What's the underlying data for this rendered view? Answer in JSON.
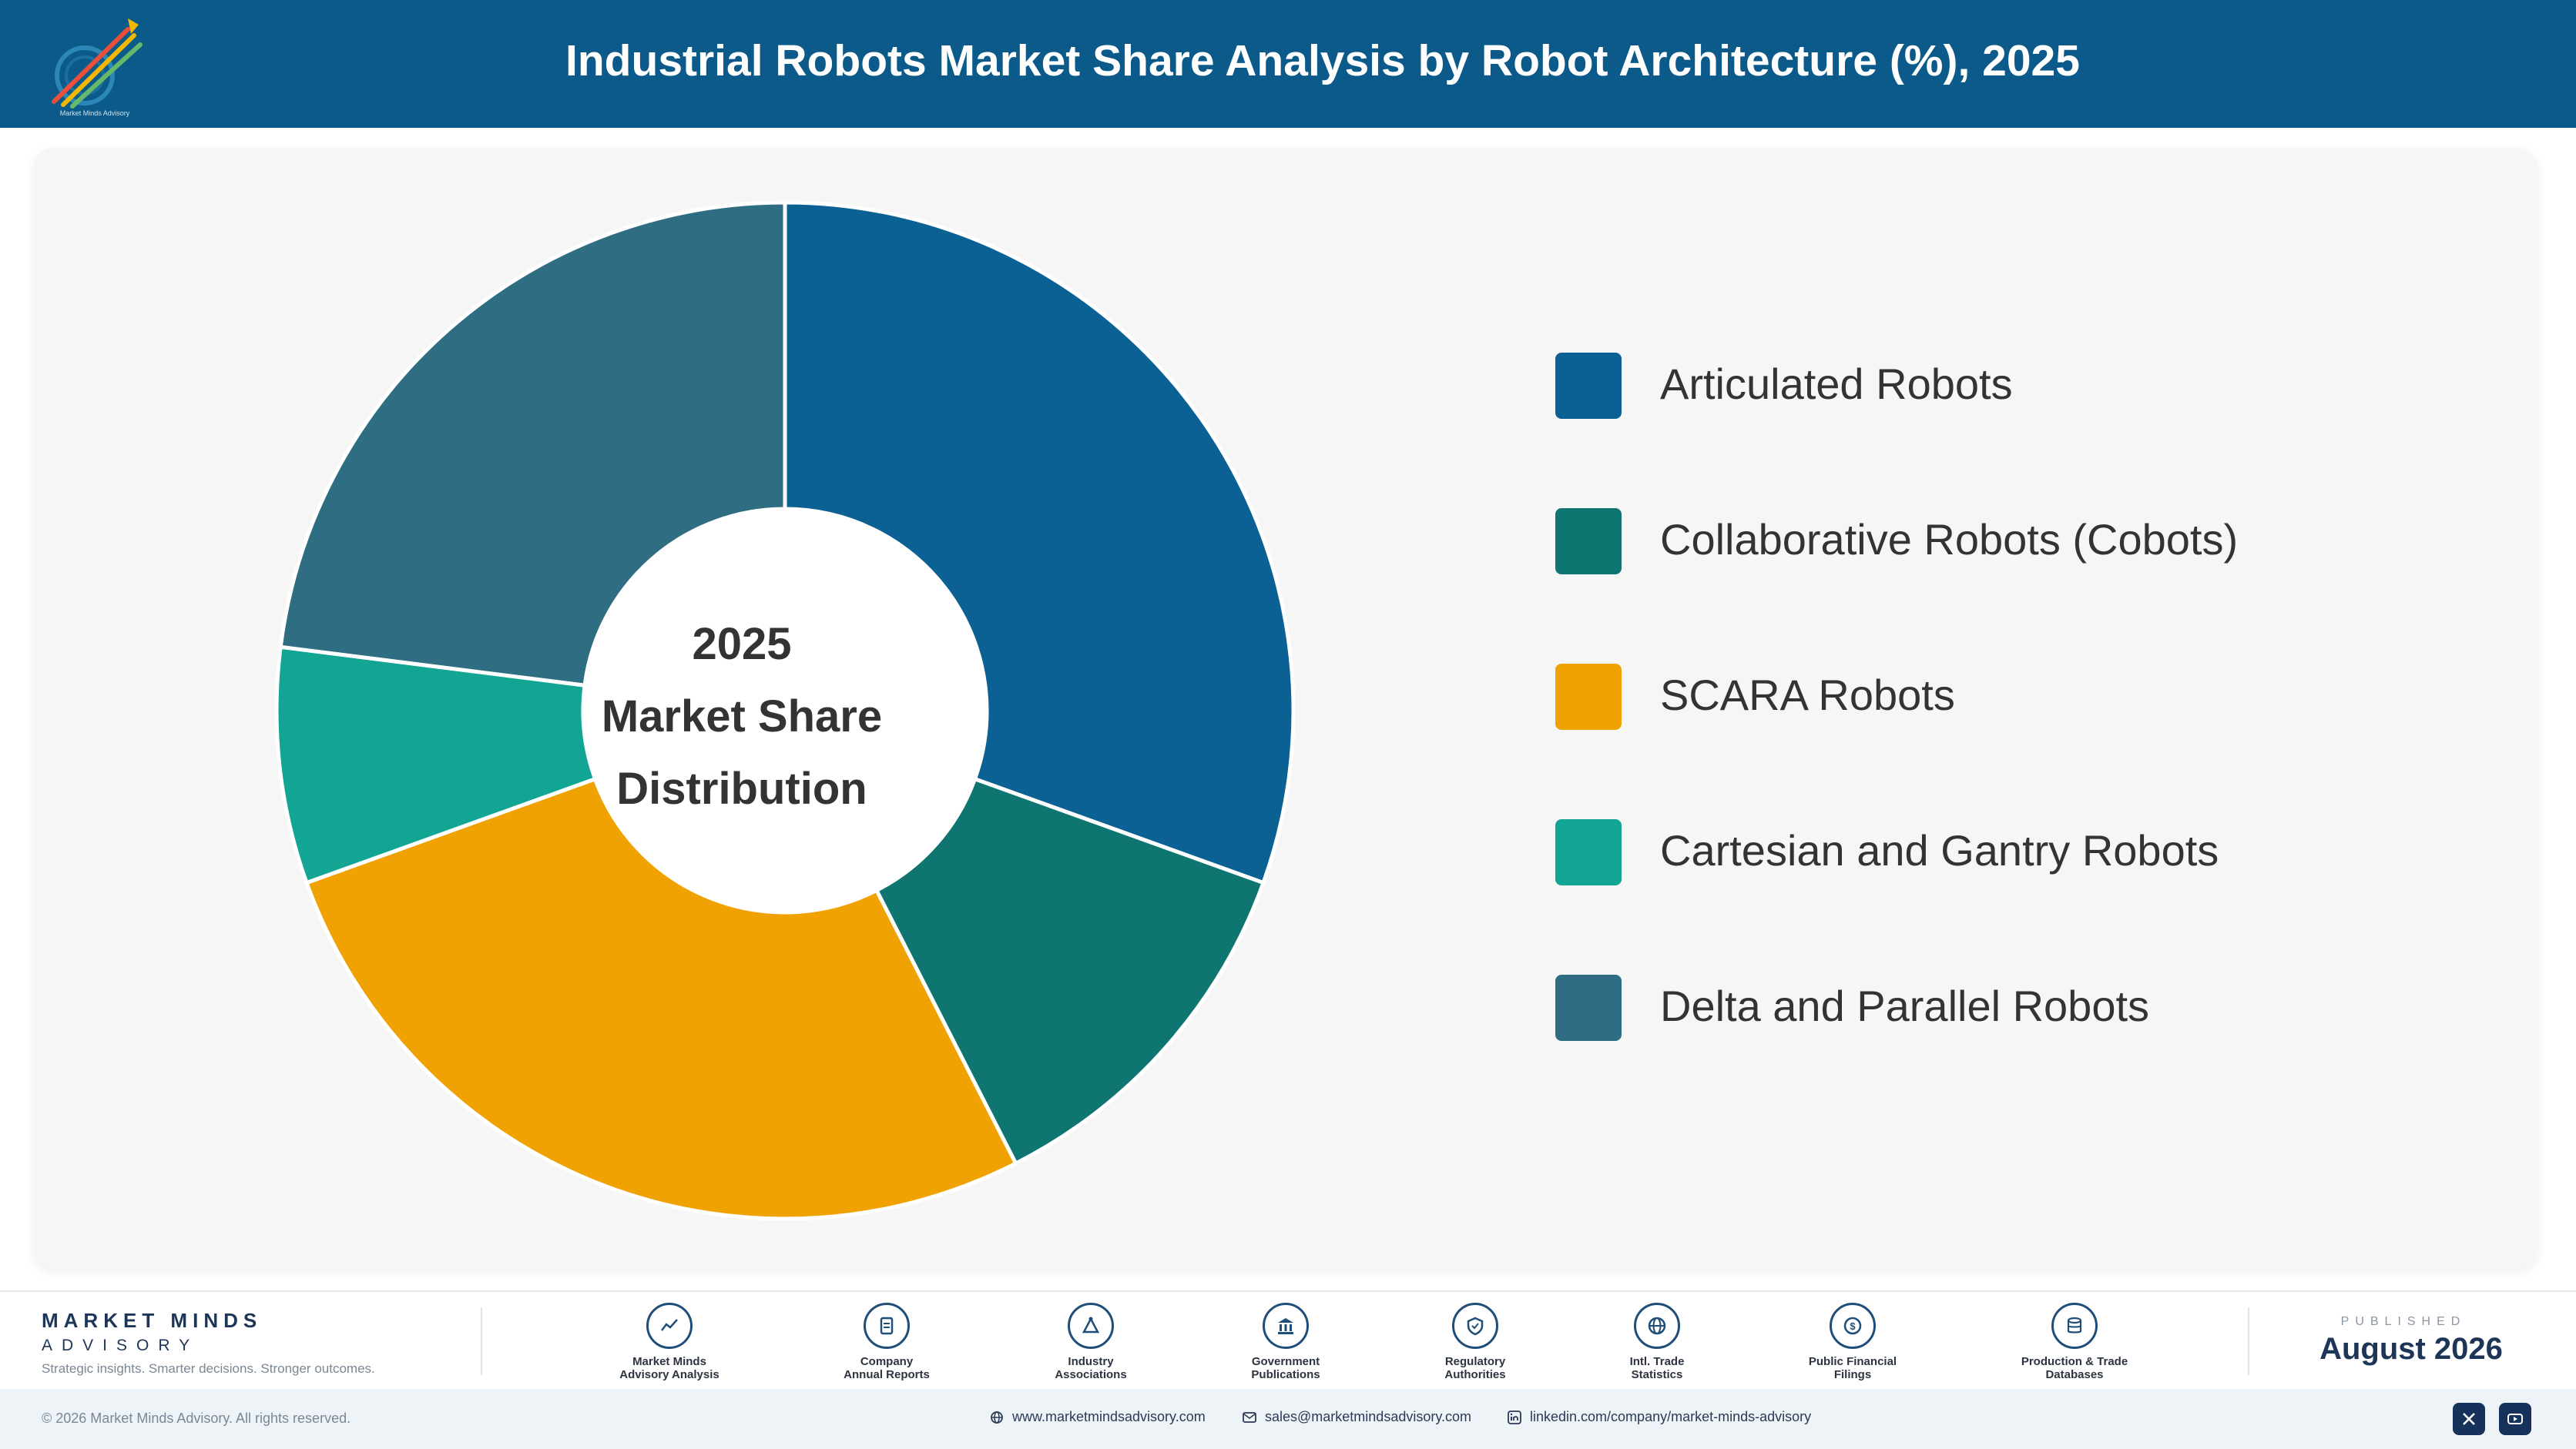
{
  "header": {
    "title": "Industrial Robots Market Share Analysis by Robot Architecture (%), 2025",
    "logo_text": "Market Minds Advisory"
  },
  "center_label": {
    "line1": "2025",
    "line2": "Market Share",
    "line3": "Distribution"
  },
  "chart_data": {
    "type": "pie",
    "donut": true,
    "title": "Industrial Robots Market Share Analysis by Robot Architecture (%), 2025",
    "categories": [
      "Articulated Robots",
      "Collaborative Robots (Cobots)",
      "SCARA Robots",
      "Cartesian and Gantry Robots",
      "Delta and Parallel Robots"
    ],
    "values": [
      30.5,
      12.0,
      27.0,
      7.5,
      23.0
    ],
    "colors": [
      "#0b6094",
      "#0e7570",
      "#f0a202",
      "#12a594",
      "#2f6d83"
    ],
    "legend": "right"
  },
  "footer": {
    "brand_name": "MARKET MINDS",
    "brand_sub": "ADVISORY",
    "tagline": "Strategic insights. Smarter decisions. Stronger outcomes.",
    "sources": [
      {
        "line1": "Market Minds",
        "line2": "Advisory Analysis",
        "icon": "chart-line-icon"
      },
      {
        "line1": "Company",
        "line2": "Annual Reports",
        "icon": "document-icon"
      },
      {
        "line1": "Industry",
        "line2": "Associations",
        "icon": "network-icon"
      },
      {
        "line1": "Government",
        "line2": "Publications",
        "icon": "building-icon"
      },
      {
        "line1": "Regulatory",
        "line2": "Authorities",
        "icon": "shield-icon"
      },
      {
        "line1": "Intl. Trade",
        "line2": "Statistics",
        "icon": "globe-icon"
      },
      {
        "line1": "Public Financial",
        "line2": "Filings",
        "icon": "coin-icon"
      },
      {
        "line1": "Production & Trade",
        "line2": "Databases",
        "icon": "database-icon"
      }
    ],
    "published_label": "PUBLISHED",
    "published_date": "August 2026",
    "copyright": "© 2026 Market Minds Advisory. All rights reserved.",
    "website": "www.marketmindsadvisory.com",
    "email": "sales@marketmindsadvisory.com",
    "linkedin": "linkedin.com/company/market-minds-advisory",
    "social": [
      "x-icon",
      "youtube-icon"
    ]
  }
}
